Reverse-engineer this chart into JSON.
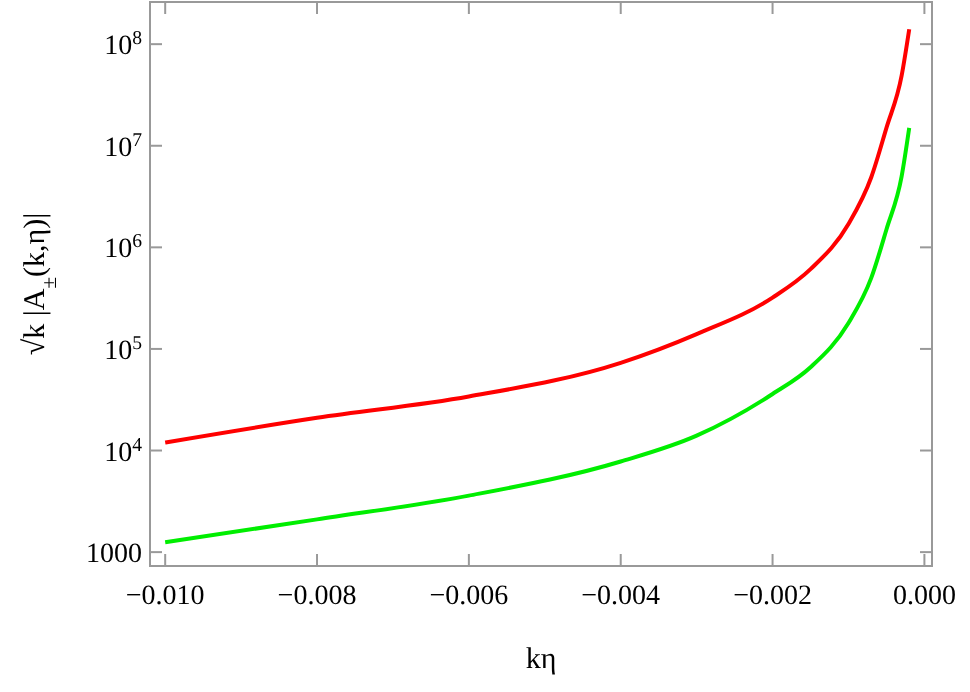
{
  "chart_data": {
    "type": "line",
    "xlabel": "kη",
    "ylabel": "√k  |A$_{±}$(k,η)|",
    "log": "y",
    "xlim": [
      -0.0102,
      0.0001
    ],
    "xticks": [
      {
        "value": -0.01,
        "label": "−0.010"
      },
      {
        "value": -0.008,
        "label": "−0.008"
      },
      {
        "value": -0.006,
        "label": "−0.006"
      },
      {
        "value": -0.004,
        "label": "−0.004"
      },
      {
        "value": -0.002,
        "label": "−0.002"
      },
      {
        "value": 0,
        "label": "0.000"
      }
    ],
    "ylim": [
      730,
      260000000
    ],
    "yticks": [
      1000,
      {
        "value": 10000,
        "label": "10$^{4}$"
      },
      {
        "value": 100000,
        "label": "10$^{5}$"
      },
      {
        "value": 1000000,
        "label": "10$^{6}$"
      },
      {
        "value": 10000000,
        "label": "10$^{7}$"
      },
      {
        "value": 100000000,
        "label": "10$^{8}$"
      }
    ],
    "grid": false,
    "marker": "none",
    "line_style": "solid",
    "x": [
      -0.01,
      -0.008,
      -0.006,
      -0.004,
      -0.003,
      -0.002,
      -0.0015,
      -0.001,
      -0.0007,
      -0.0005,
      -0.0003,
      -0.0002
    ],
    "series": [
      {
        "color": "#ff0000",
        "values": [
          12000,
          21000,
          34000,
          73000,
          140000,
          320000,
          610000,
          1700000,
          4900000,
          15000000,
          49000000,
          140000000
        ]
      },
      {
        "color": "#00ee00",
        "values": [
          1250,
          2100,
          3600,
          7800,
          14000,
          36000,
          66000,
          180000,
          500000,
          1500000,
          5000000,
          15000000
        ]
      }
    ]
  }
}
